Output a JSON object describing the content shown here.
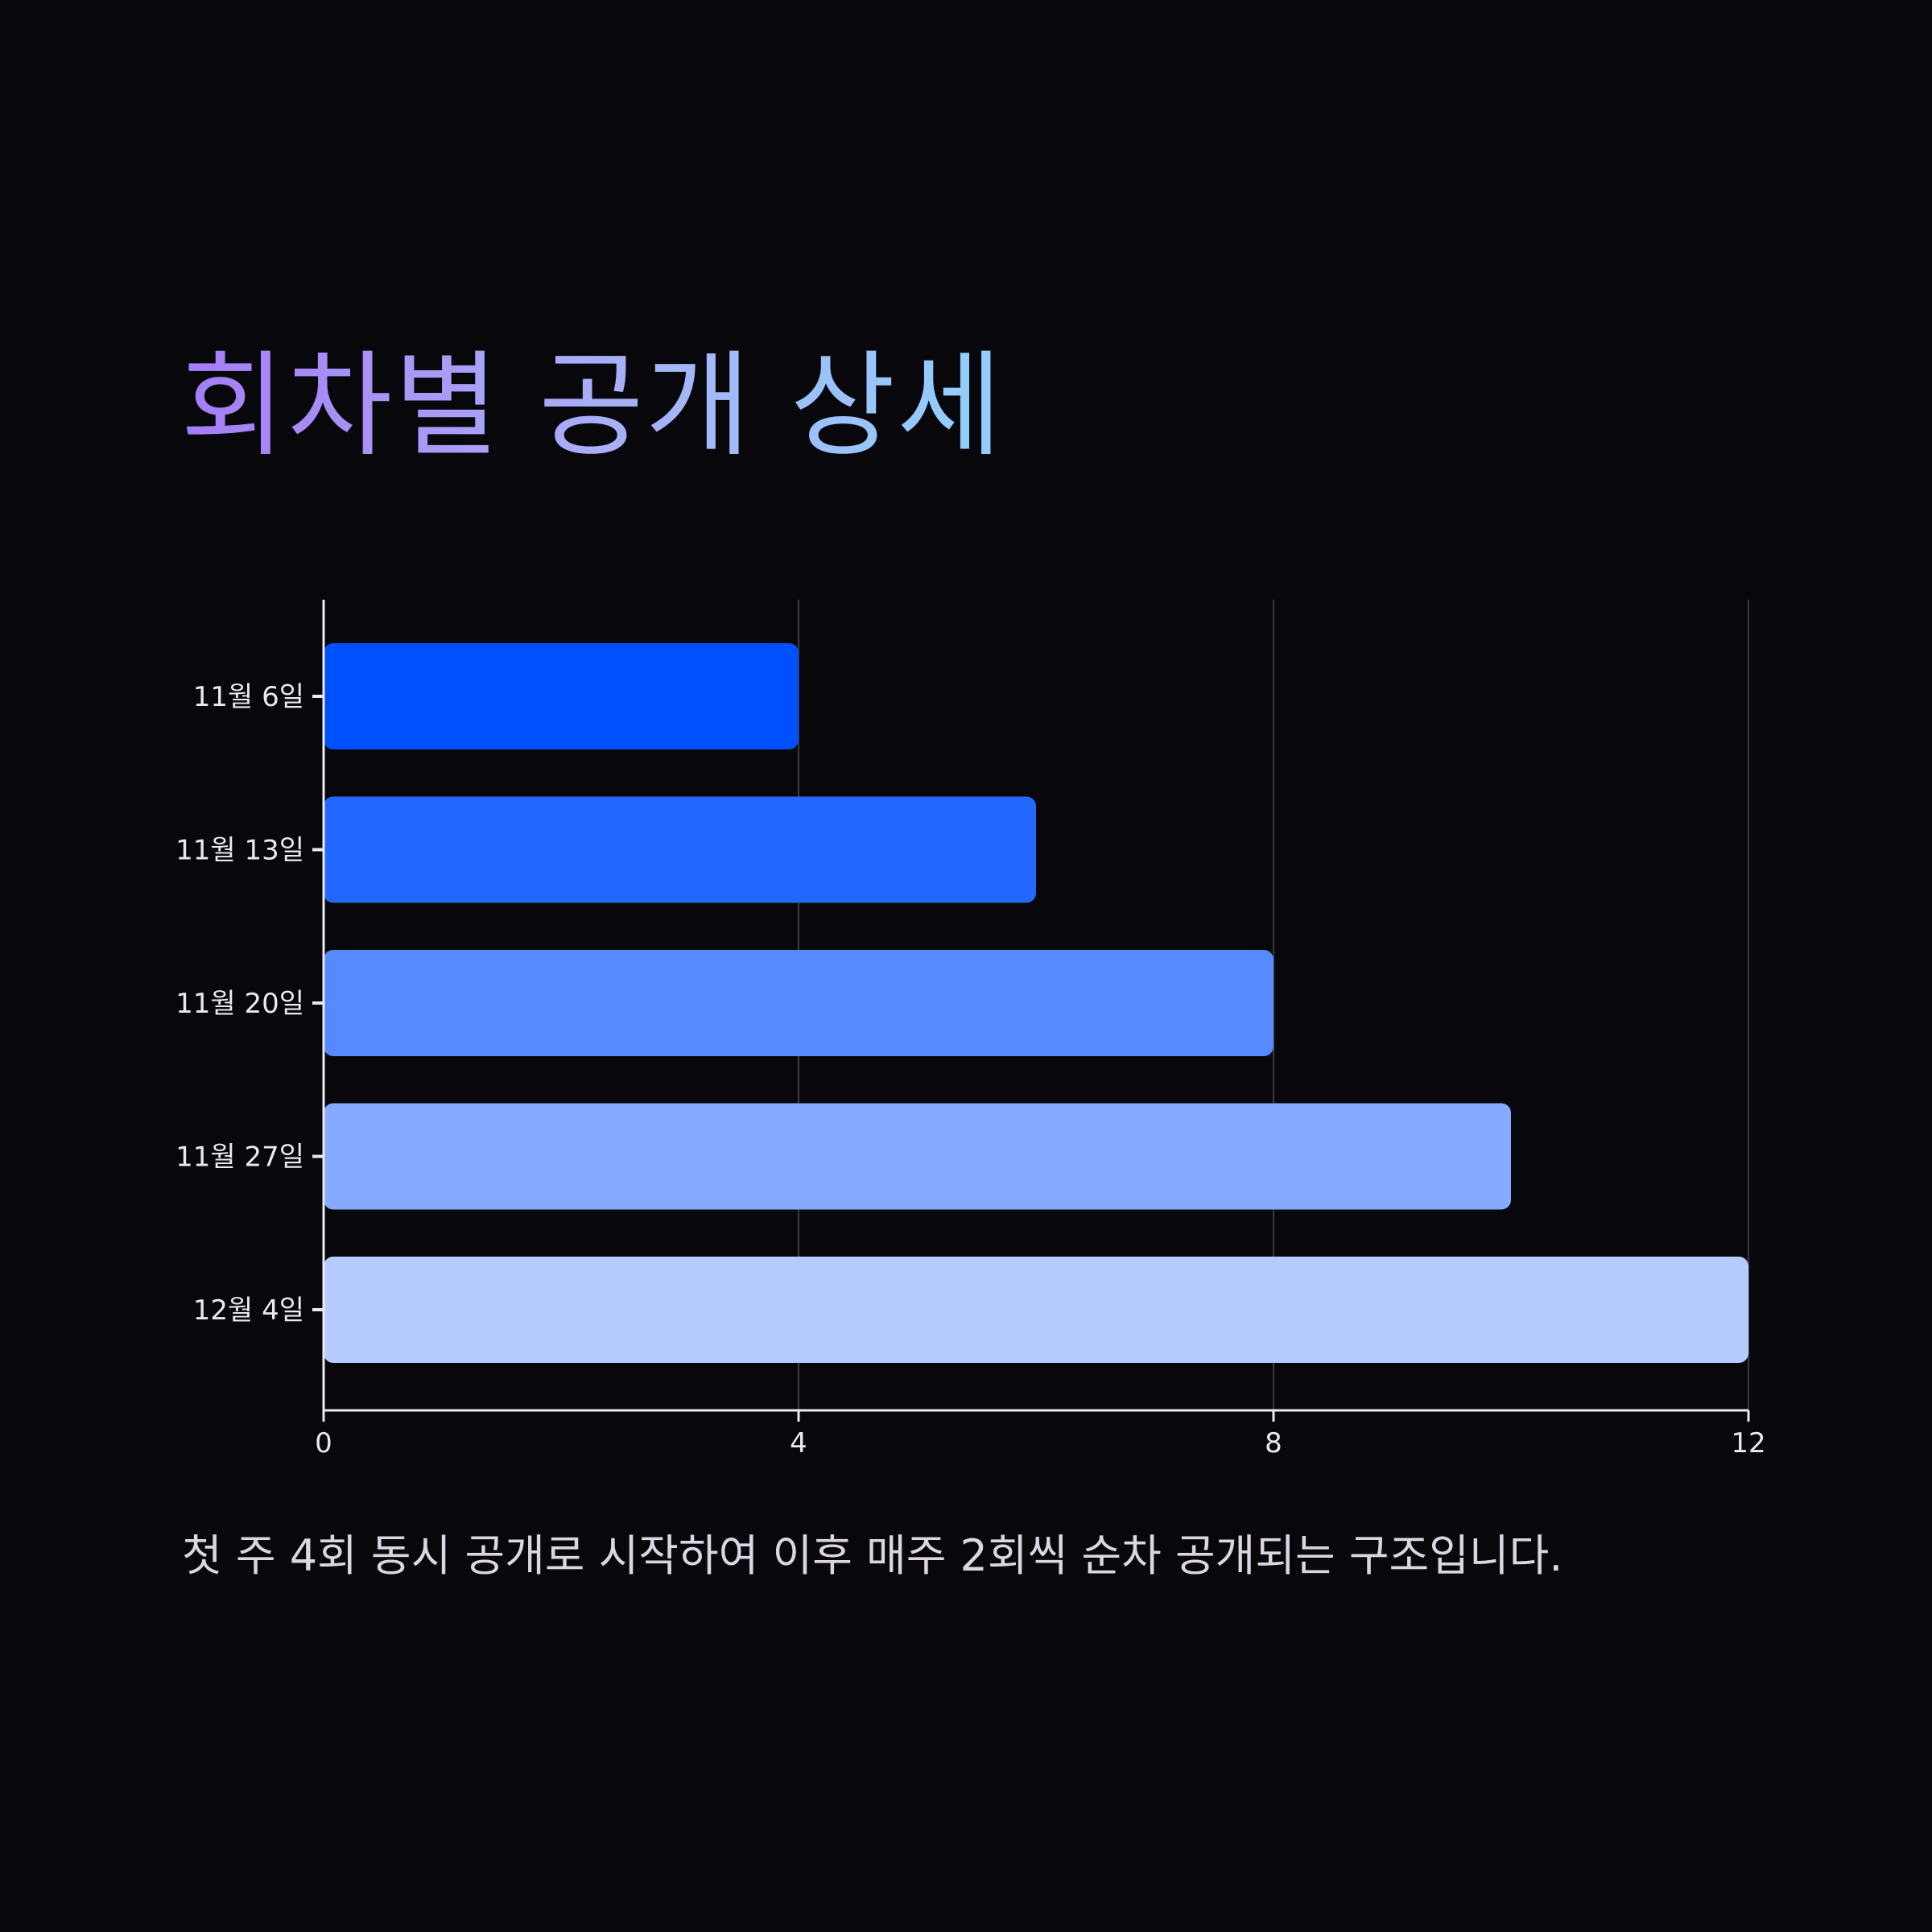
{
  "title": "회차별 공개 상세",
  "caption": "첫 주 4회 동시 공개로 시작하여 이후 매주 2회씩 순차 공개되는 구조입니다.",
  "colors": {
    "background": "#08080c",
    "grid": "#3a3a44",
    "axis": "#ece7f0",
    "bars": [
      "#0050ff",
      "#2469ff",
      "#5789ff",
      "#86aaff",
      "#b6cbff"
    ]
  },
  "chart_data": {
    "type": "bar",
    "orientation": "horizontal",
    "categories": [
      "11월 6일",
      "11월 13일",
      "11월 20일",
      "11월 27일",
      "12월 4일"
    ],
    "values": [
      4,
      6,
      8,
      10,
      12
    ],
    "xlim": [
      0,
      12
    ],
    "xticks": [
      "0",
      "4",
      "8",
      "12"
    ],
    "grid": true,
    "legend": false
  }
}
